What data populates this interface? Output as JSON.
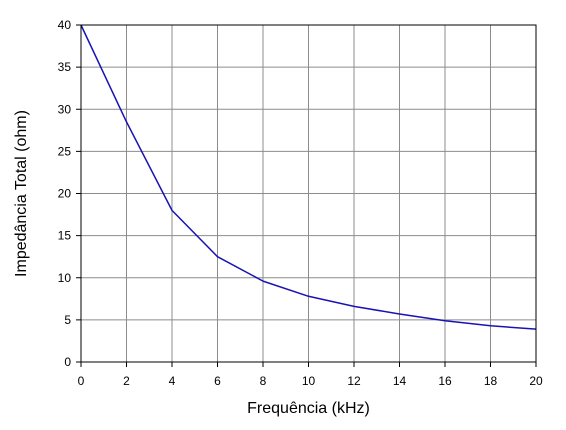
{
  "chart_data": {
    "type": "line",
    "title": "",
    "xlabel": "Frequência (kHz)",
    "ylabel": "Impedância Total (ohm)",
    "xlim": [
      0,
      20
    ],
    "ylim": [
      0,
      40
    ],
    "xticks": [
      0,
      2,
      4,
      6,
      8,
      10,
      12,
      14,
      16,
      18,
      20
    ],
    "yticks": [
      0,
      5,
      10,
      15,
      20,
      25,
      30,
      35,
      40
    ],
    "grid": true,
    "legend": "none",
    "series": [
      {
        "color": "#1a12b4",
        "x": [
          0,
          2,
          4,
          6,
          8,
          10,
          12,
          14,
          16,
          18,
          20
        ],
        "y": [
          40,
          28.5,
          18,
          12.5,
          9.6,
          7.8,
          6.6,
          5.7,
          4.9,
          4.3,
          3.9
        ]
      }
    ]
  }
}
